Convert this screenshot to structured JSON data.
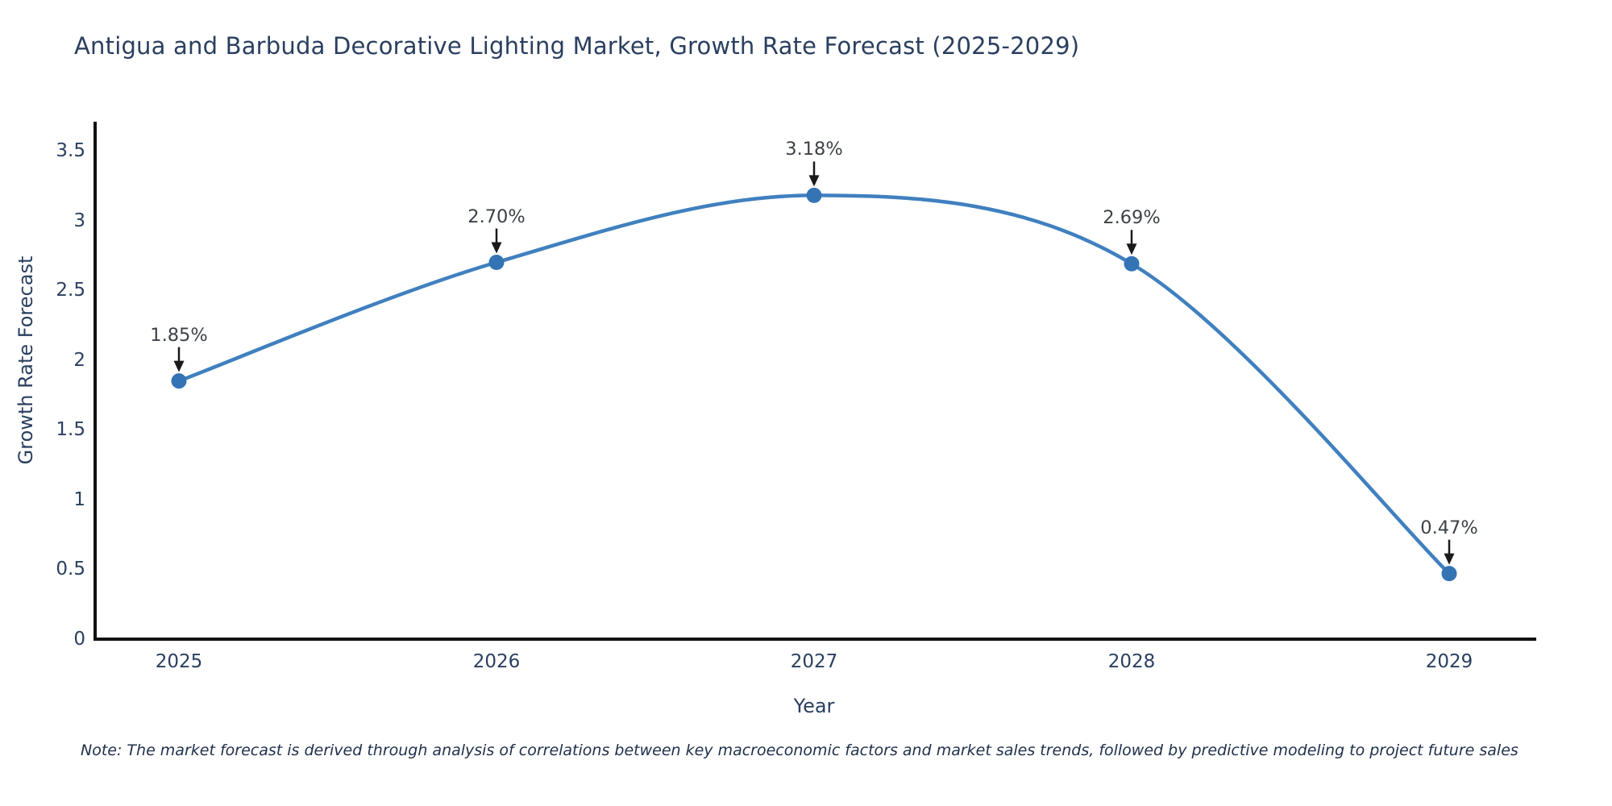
{
  "title": "Antigua and Barbuda Decorative Lighting Market, Growth Rate Forecast (2025-2029)",
  "footnote": "Note: The market forecast is derived through analysis of correlations between key macroeconomic factors and market sales trends, followed by predictive modeling to project future sales",
  "chart_data": {
    "type": "line",
    "title": "Antigua and Barbuda Decorative Lighting Market, Growth Rate Forecast (2025-2029)",
    "xlabel": "Year",
    "ylabel": "Growth Rate Forecast",
    "x": [
      2025,
      2026,
      2027,
      2028,
      2029
    ],
    "categories": [
      "2025",
      "2026",
      "2027",
      "2028",
      "2029"
    ],
    "series": [
      {
        "name": "Growth Rate Forecast",
        "values": [
          1.85,
          2.7,
          3.18,
          2.69,
          0.47
        ]
      }
    ],
    "point_labels": [
      "1.85%",
      "2.70%",
      "3.18%",
      "2.69%",
      "0.47%"
    ],
    "ylim": [
      0,
      3.7
    ],
    "yticks": [
      0,
      0.5,
      1,
      1.5,
      2,
      2.5,
      3,
      3.5
    ],
    "ytick_labels": [
      "0",
      "0.5",
      "1",
      "1.5",
      "2",
      "2.5",
      "3",
      "3.5"
    ],
    "grid": false,
    "legend_position": "none",
    "curve": "spline",
    "annotations": "value labels with downward black arrows above each point",
    "colors": {
      "line": "#4080bf",
      "marker": "#3474b4",
      "axis": "#111111",
      "arrow": "#1a1a1a",
      "text": "#2a3f5f",
      "annotation_text": "#3d4248",
      "background": "#ffffff"
    }
  }
}
